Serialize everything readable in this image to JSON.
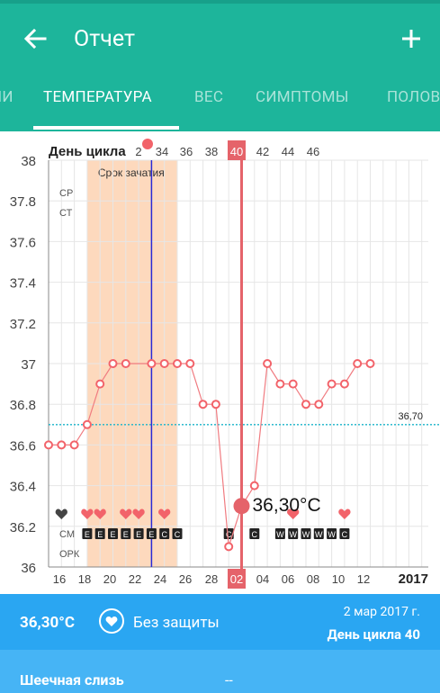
{
  "header": {
    "title": "Отчет",
    "back_icon": "arrow-left-icon",
    "add_icon": "plus-icon"
  },
  "tabs": [
    {
      "label": "ИИ",
      "active": false
    },
    {
      "label": "ТЕМПЕРАТУРА",
      "active": true
    },
    {
      "label": "ВЕС",
      "active": false
    },
    {
      "label": "СИМПТОМЫ",
      "active": false
    },
    {
      "label": "ПОЛОВ",
      "active": false
    }
  ],
  "chart_data": {
    "type": "line",
    "top_label": "День цикла",
    "top_ticks": [
      "2",
      "34",
      "36",
      "38",
      "40",
      "42",
      "44",
      "46"
    ],
    "top_selected": "40",
    "x_ticks": [
      "16",
      "18",
      "20",
      "22",
      "24",
      "26",
      "28",
      "02",
      "04",
      "06",
      "08",
      "10",
      "12"
    ],
    "x_selected": "02",
    "year": "2017",
    "ylim": [
      36.0,
      38.0
    ],
    "y_ticks": [
      "38",
      "37.8",
      "37.6",
      "37.4",
      "37.2",
      "37",
      "36.8",
      "36.6",
      "36.4",
      "36.2",
      "36"
    ],
    "coverline": {
      "value": 36.7,
      "label": "36,70"
    },
    "fertile_window": {
      "label": "Срок зачатия",
      "from": 18,
      "to": 25
    },
    "ovulation_day": 23,
    "row_labels": {
      "cp": "СР",
      "ct": "СТ",
      "cm": "СМ",
      "opk": "ОРК"
    },
    "series": [
      {
        "days": [
          15,
          16,
          17,
          18,
          19,
          20,
          21,
          23,
          24,
          25,
          26,
          27,
          28,
          29,
          30,
          31,
          32,
          33,
          34,
          35,
          36,
          37,
          38,
          39,
          40,
          41
        ],
        "values": [
          36.6,
          36.6,
          36.6,
          36.7,
          36.9,
          37.0,
          37.0,
          37.0,
          37.0,
          37.0,
          37.0,
          36.8,
          36.8,
          36.1,
          36.3,
          36.4,
          37.0,
          36.9,
          36.9,
          36.8,
          36.8,
          36.9,
          36.9,
          37.0,
          37.0,
          null
        ]
      }
    ],
    "selected_point": {
      "day": 30,
      "value": 36.3,
      "label": "36,30°C"
    },
    "hearts": [
      {
        "day": 16,
        "kind": "dark"
      },
      {
        "day": 18,
        "kind": "pink"
      },
      {
        "day": 19,
        "kind": "pink"
      },
      {
        "day": 21,
        "kind": "pink"
      },
      {
        "day": 22,
        "kind": "pink"
      },
      {
        "day": 24,
        "kind": "pink"
      },
      {
        "day": 34,
        "kind": "pink"
      },
      {
        "day": 38,
        "kind": "pink"
      }
    ],
    "cm_marks": [
      {
        "day": 18,
        "text": "E"
      },
      {
        "day": 19,
        "text": "E"
      },
      {
        "day": 20,
        "text": "E"
      },
      {
        "day": 21,
        "text": "E"
      },
      {
        "day": 22,
        "text": "E"
      },
      {
        "day": 23,
        "text": "E"
      },
      {
        "day": 24,
        "text": "C"
      },
      {
        "day": 25,
        "text": "C"
      },
      {
        "day": 29,
        "text": "C"
      },
      {
        "day": 31,
        "text": "C"
      },
      {
        "day": 33,
        "text": "W"
      },
      {
        "day": 34,
        "text": "W"
      },
      {
        "day": 35,
        "text": "W"
      },
      {
        "day": 36,
        "text": "W"
      },
      {
        "day": 37,
        "text": "W"
      },
      {
        "day": 38,
        "text": "C"
      }
    ],
    "colors": {
      "line": "#f07b80",
      "marker": "#f2636a",
      "fertile": "#fdd9bd",
      "ovulation": "#2a2ad6",
      "coverline": "#19b3c9",
      "selected": "#e5636a"
    }
  },
  "info": {
    "temp": "36,30°C",
    "protection_icon": "heart-icon",
    "protection": "Без защиты",
    "date": "2 мар 2017 г.",
    "cycle_day": "День цикла 40"
  },
  "row": {
    "label": "Шеечная слизь",
    "value": "--"
  }
}
